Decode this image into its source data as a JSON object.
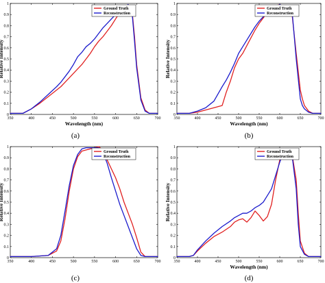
{
  "colors": {
    "ground_truth": "#e02020",
    "reconstruction": "#1a1acc"
  },
  "chart_data": [
    {
      "type": "line",
      "panel_label": "(a)",
      "xlabel": "Wavelength (nm)",
      "ylabel": "Relative Intensity",
      "xlim": [
        350,
        700
      ],
      "ylim": [
        0,
        1
      ],
      "xticks": [
        "350",
        "400",
        "450",
        "500",
        "550",
        "600",
        "650",
        "700"
      ],
      "yticks": [
        "0",
        "0.1",
        "0.2",
        "0.3",
        "0.4",
        "0.5",
        "0.6",
        "0.7",
        "0.8",
        "0.9",
        "1"
      ],
      "legend": "top-right",
      "x": [
        350,
        380,
        400,
        420,
        440,
        460,
        470,
        480,
        490,
        500,
        510,
        520,
        530,
        540,
        550,
        560,
        570,
        580,
        590,
        600,
        610,
        620,
        630,
        640,
        645,
        650,
        660,
        670,
        680,
        690,
        700
      ],
      "series": [
        {
          "name": "Ground Truth",
          "values": [
            0.01,
            0.01,
            0.05,
            0.1,
            0.16,
            0.22,
            0.25,
            0.29,
            0.33,
            0.37,
            0.41,
            0.45,
            0.5,
            0.55,
            0.61,
            0.66,
            0.7,
            0.75,
            0.8,
            0.86,
            0.92,
            0.96,
            0.99,
            0.9,
            0.7,
            0.45,
            0.15,
            0.04,
            0.01,
            0.01,
            0.01
          ]
        },
        {
          "name": "Reconstruction",
          "values": [
            0.01,
            0.01,
            0.05,
            0.11,
            0.18,
            0.25,
            0.29,
            0.34,
            0.39,
            0.45,
            0.52,
            0.56,
            0.61,
            0.64,
            0.68,
            0.73,
            0.78,
            0.82,
            0.86,
            0.9,
            0.94,
            0.97,
            0.99,
            0.88,
            0.66,
            0.42,
            0.13,
            0.03,
            0.01,
            0.01,
            0.01
          ]
        }
      ]
    },
    {
      "type": "line",
      "panel_label": "(b)",
      "xlabel": "Wavelength (nm)",
      "ylabel": "Relative Intensity",
      "xlim": [
        350,
        700
      ],
      "ylim": [
        0,
        1
      ],
      "xticks": [
        "350",
        "400",
        "450",
        "500",
        "550",
        "600",
        "650",
        "700"
      ],
      "yticks": [
        "0",
        "0.1",
        "0.2",
        "0.3",
        "0.4",
        "0.5",
        "0.6",
        "0.7",
        "0.8",
        "0.9",
        "1"
      ],
      "legend": "top-right",
      "x": [
        350,
        380,
        400,
        420,
        440,
        460,
        470,
        480,
        490,
        500,
        510,
        520,
        530,
        540,
        550,
        560,
        570,
        580,
        590,
        600,
        610,
        620,
        630,
        640,
        650,
        655,
        660,
        670,
        680,
        690,
        700
      ],
      "series": [
        {
          "name": "Ground Truth",
          "values": [
            0.01,
            0.01,
            0.02,
            0.04,
            0.06,
            0.08,
            0.2,
            0.3,
            0.42,
            0.5,
            0.55,
            0.62,
            0.69,
            0.76,
            0.82,
            0.87,
            0.92,
            0.95,
            0.98,
            0.99,
            0.97,
            0.95,
            0.9,
            0.55,
            0.22,
            0.14,
            0.08,
            0.03,
            0.01,
            0.01,
            0.01
          ]
        },
        {
          "name": "Reconstruction",
          "values": [
            0.01,
            0.01,
            0.03,
            0.06,
            0.12,
            0.25,
            0.31,
            0.38,
            0.46,
            0.55,
            0.61,
            0.67,
            0.73,
            0.79,
            0.84,
            0.88,
            0.91,
            0.94,
            0.97,
            0.99,
            0.97,
            0.96,
            0.93,
            0.5,
            0.14,
            0.08,
            0.05,
            0.02,
            0.01,
            0.01,
            0.01
          ]
        }
      ]
    },
    {
      "type": "line",
      "panel_label": "(c)",
      "xlabel": "",
      "ylabel": "Relative Intensity",
      "xlim": [
        350,
        700
      ],
      "ylim": [
        0,
        1
      ],
      "xticks": [
        "350",
        "400",
        "450",
        "500",
        "550",
        "600",
        "650",
        "700"
      ],
      "yticks": [
        "0",
        "0.1",
        "0.2",
        "0.3",
        "0.4",
        "0.5",
        "0.6",
        "0.7",
        "0.8",
        "0.9",
        "1"
      ],
      "legend": "top-right",
      "x": [
        350,
        400,
        440,
        460,
        470,
        480,
        490,
        500,
        510,
        520,
        530,
        540,
        550,
        560,
        570,
        580,
        590,
        600,
        610,
        620,
        630,
        640,
        650,
        660,
        670,
        680,
        700
      ],
      "series": [
        {
          "name": "Ground Truth",
          "values": [
            0.01,
            0.01,
            0.02,
            0.06,
            0.15,
            0.35,
            0.6,
            0.8,
            0.91,
            0.96,
            0.97,
            0.98,
            0.99,
            1.0,
            0.97,
            0.88,
            0.8,
            0.72,
            0.62,
            0.5,
            0.4,
            0.3,
            0.18,
            0.05,
            0.01,
            0.01,
            0.01
          ]
        },
        {
          "name": "Reconstruction",
          "values": [
            0.01,
            0.01,
            0.02,
            0.08,
            0.2,
            0.42,
            0.65,
            0.83,
            0.93,
            0.98,
            0.99,
            0.99,
            0.99,
            0.99,
            0.95,
            0.85,
            0.72,
            0.6,
            0.48,
            0.38,
            0.28,
            0.18,
            0.08,
            0.02,
            0.01,
            0.01,
            0.01
          ]
        }
      ]
    },
    {
      "type": "line",
      "panel_label": "(d)",
      "xlabel": "Wavelength (nm)",
      "ylabel": "Relative Intensity",
      "xlim": [
        350,
        700
      ],
      "ylim": [
        0,
        1
      ],
      "xticks": [
        "350",
        "400",
        "450",
        "500",
        "550",
        "600",
        "650",
        "700"
      ],
      "yticks": [
        "0",
        "0.1",
        "0.2",
        "0.3",
        "0.4",
        "0.5",
        "0.6",
        "0.7",
        "0.8",
        "0.9",
        "1"
      ],
      "legend": "top-right",
      "x": [
        350,
        380,
        390,
        400,
        420,
        440,
        460,
        480,
        490,
        500,
        510,
        520,
        530,
        540,
        550,
        560,
        570,
        580,
        590,
        600,
        610,
        620,
        630,
        640,
        645,
        650,
        660,
        670,
        680,
        700
      ],
      "series": [
        {
          "name": "Ground Truth",
          "values": [
            0.01,
            0.01,
            0.02,
            0.06,
            0.13,
            0.19,
            0.23,
            0.28,
            0.32,
            0.34,
            0.35,
            0.32,
            0.36,
            0.42,
            0.38,
            0.33,
            0.37,
            0.48,
            0.7,
            0.88,
            0.98,
            0.96,
            0.93,
            0.7,
            0.4,
            0.15,
            0.04,
            0.01,
            0.01,
            0.01
          ]
        },
        {
          "name": "Reconstruction",
          "values": [
            0.01,
            0.01,
            0.02,
            0.07,
            0.15,
            0.22,
            0.28,
            0.33,
            0.36,
            0.38,
            0.4,
            0.4,
            0.42,
            0.45,
            0.47,
            0.5,
            0.56,
            0.62,
            0.74,
            0.86,
            0.96,
            0.95,
            0.92,
            0.62,
            0.3,
            0.1,
            0.03,
            0.01,
            0.01,
            0.01
          ]
        }
      ]
    }
  ]
}
